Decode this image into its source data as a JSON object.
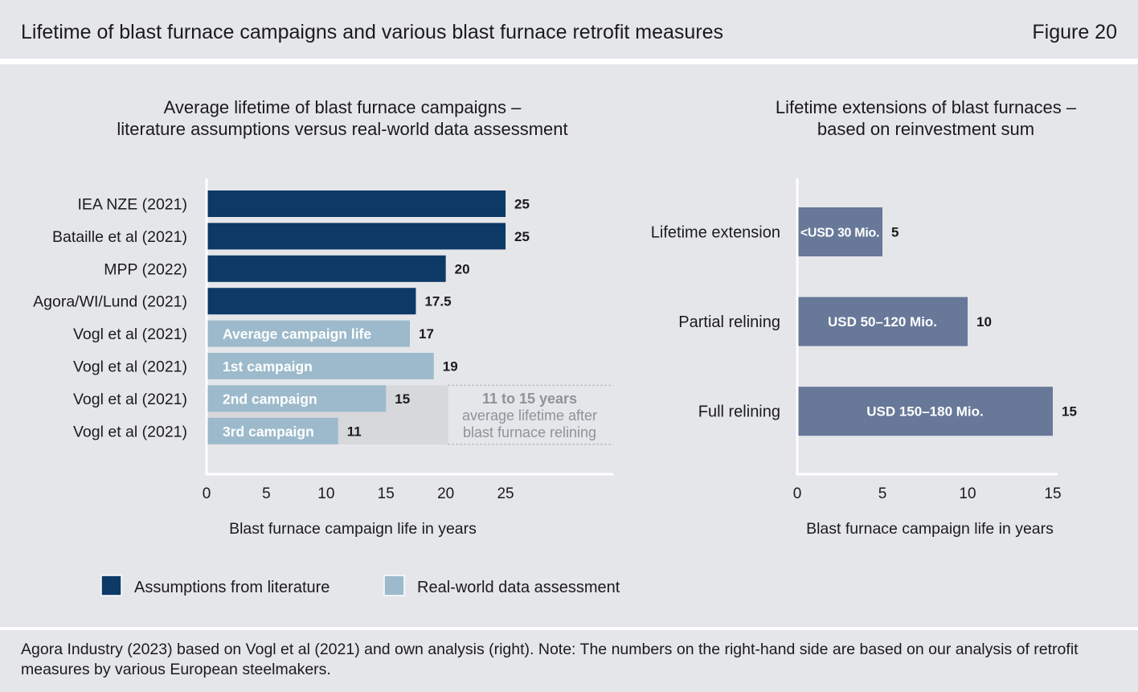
{
  "header": {
    "title": "Lifetime of blast furnace campaigns and various blast furnace retrofit measures",
    "figure": "Figure 20"
  },
  "theme": {
    "panel": "#e5e6ea",
    "axis": "#ffffff",
    "text": "#1b1b1b",
    "annotation_text": "#8f9297",
    "relining_band": "#d7d8dc"
  },
  "chart_data": [
    {
      "type": "bar",
      "orientation": "horizontal",
      "title": [
        "Average lifetime of blast furnace campaigns –",
        "literature assumptions versus real-world data assessment"
      ],
      "xlabel": "Blast furnace campaign life in years",
      "xlim": [
        0,
        34
      ],
      "xticks": [
        0,
        5,
        10,
        15,
        20,
        25
      ],
      "categories": [
        "IEA NZE (2021)",
        "Bataille et al (2021)",
        "MPP (2022)",
        "Agora/WI/Lund (2021)",
        "Vogl et al (2021)",
        "Vogl et al (2021)",
        "Vogl et al (2021)",
        "Vogl et al (2021)"
      ],
      "values": [
        25,
        25,
        20,
        17.5,
        17,
        19,
        15,
        11
      ],
      "bar_labels": [
        null,
        null,
        null,
        null,
        "Average campaign life",
        "1st campaign",
        "2nd campaign",
        "3rd campaign"
      ],
      "series_index": [
        0,
        0,
        0,
        0,
        1,
        1,
        1,
        1
      ],
      "series": [
        {
          "name": "Assumptions from literature",
          "color": "#0d3966"
        },
        {
          "name": "Real-world data assessment",
          "color": "#9cbacb"
        }
      ],
      "annotation": [
        "11 to 15 years",
        "average lifetime after",
        "blast furnace relining"
      ],
      "legend": "bottom-left",
      "grid": false
    },
    {
      "type": "bar",
      "orientation": "horizontal",
      "title": [
        "Lifetime extensions of blast furnaces –",
        "based on reinvestment sum"
      ],
      "xlabel": "Blast furnace campaign life in years",
      "xlim": [
        0,
        15
      ],
      "xticks": [
        0,
        5,
        10,
        15
      ],
      "categories": [
        "Lifetime extension",
        "Partial relining",
        "Full relining"
      ],
      "values": [
        5,
        10,
        15
      ],
      "bar_labels": [
        "<USD 30 Mio.",
        "USD 50–120 Mio.",
        "USD 150–180 Mio."
      ],
      "color": "#677899",
      "grid": false
    }
  ],
  "footer": {
    "source": "Agora Industry (2023) based on Vogl et al (2021) and own analysis (right). Note: The numbers on the right-hand side are based on our analysis of retrofit measures by various European steelmakers."
  }
}
